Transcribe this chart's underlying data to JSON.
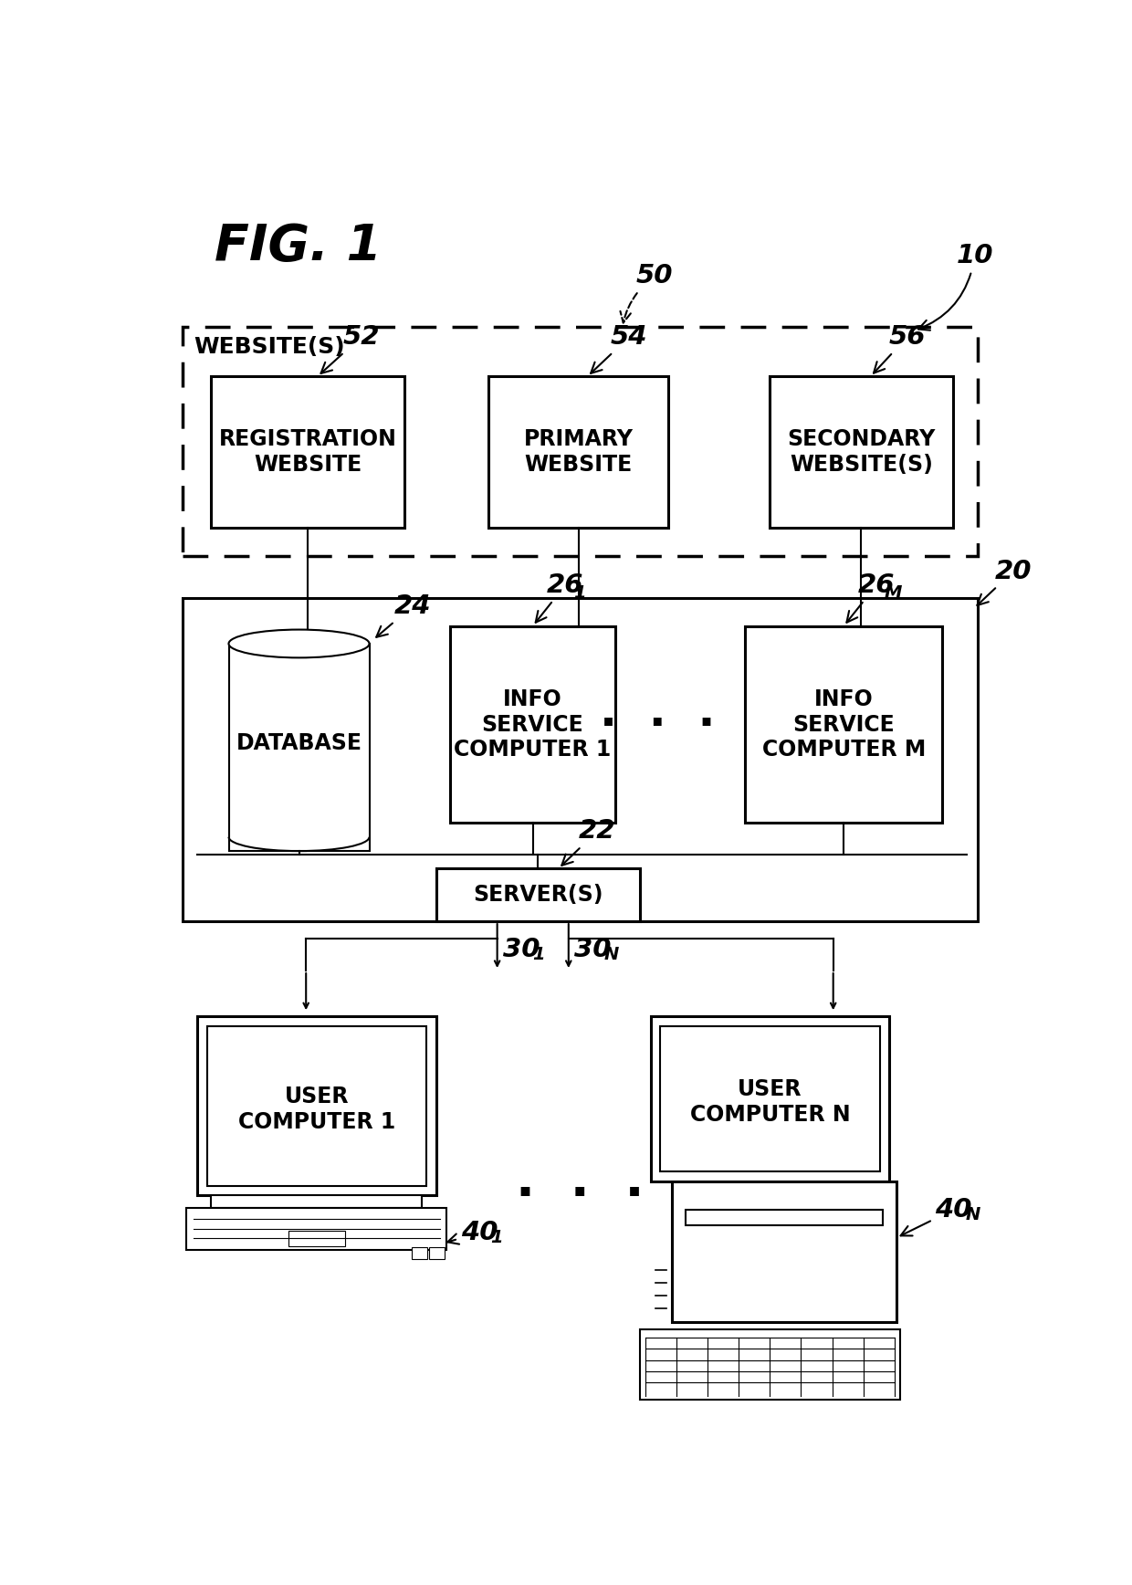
{
  "bg_color": "#ffffff",
  "title": "FIG. 1",
  "ref10": "10",
  "ref50": "50",
  "ref52": "52",
  "ref54": "54",
  "ref56": "56",
  "ref20": "20",
  "ref24": "24",
  "ref261": "26",
  "ref261_sub": "1",
  "ref26M": "26",
  "ref26M_sub": "M",
  "ref22": "22",
  "ref301": "30",
  "ref301_sub": "1",
  "ref30N": "30",
  "ref30N_sub": "N",
  "ref401": "40",
  "ref401_sub": "1",
  "ref40N": "40",
  "ref40N_sub": "N",
  "lbl_websites": "WEBSITE(S)",
  "lbl_reg": "REGISTRATION\nWEBSITE",
  "lbl_primary": "PRIMARY\nWEBSITE",
  "lbl_secondary": "SECONDARY\nWEBSITE(S)",
  "lbl_database": "DATABASE",
  "lbl_info1": "INFO\nSERVICE\nCOMPUTER 1",
  "lbl_infoM": "INFO\nSERVICE\nCOMPUTER M",
  "lbl_server": "SERVER(S)",
  "lbl_user1": "USER\nCOMPUTER 1",
  "lbl_userN": "USER\nCOMPUTER N",
  "dots": "· · ·"
}
